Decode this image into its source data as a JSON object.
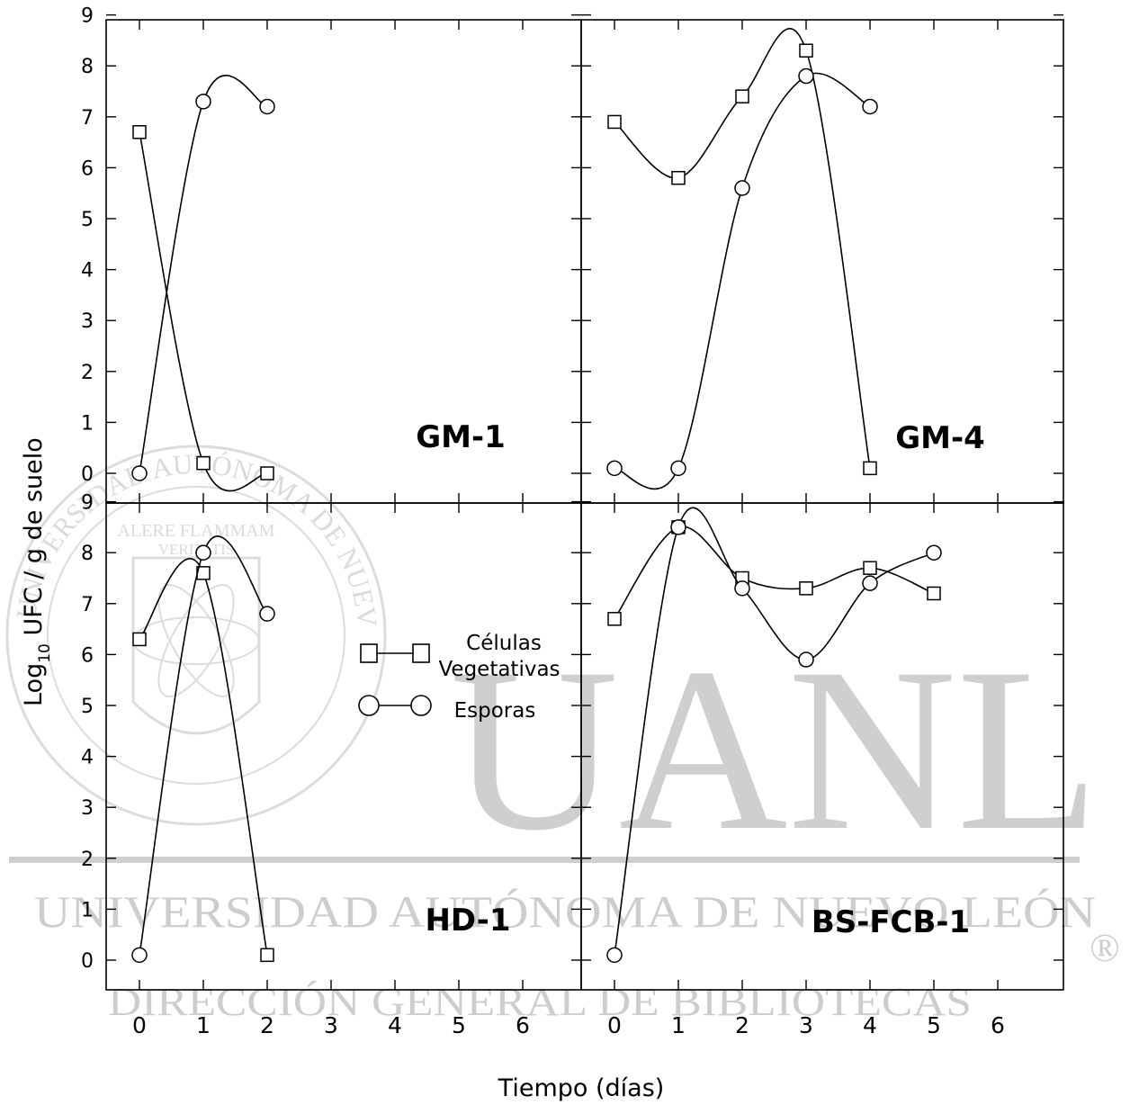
{
  "watermark": {
    "big": "UANL",
    "line1": "UNIVERSIDAD AUTÓNOMA DE NUEVO LEÓN",
    "line2": "DIRECCIÓN GENERAL DE BIBLIOTECAS",
    "registered": "®",
    "seal_ring": "UNIVERSIDAD AUTÓNOMA DE NUEVO LEÓN",
    "motto_1": "ALERE FLAMMAM",
    "motto_2": "VERITATIS"
  },
  "axes": {
    "ylabel_prefix": "Log",
    "ylabel_sub": "10",
    "ylabel_rest": " UFC / g de suelo",
    "xlabel": "Tiempo (días)"
  },
  "legend": {
    "vegetative_line1": "Células",
    "vegetative_line2": "Vegetativas",
    "spores": "Esporas"
  },
  "chart_data": [
    {
      "type": "line",
      "panel_label": "GM-1",
      "x_ticks": [
        0,
        1,
        2,
        3,
        4,
        5,
        6
      ],
      "y_ticks": [
        0,
        1,
        2,
        3,
        4,
        5,
        6,
        7,
        8,
        9
      ],
      "xlim": [
        -0.5,
        7
      ],
      "ylim": [
        -0.5,
        9
      ],
      "series": [
        {
          "name": "Células Vegetativas",
          "marker": "square",
          "x": [
            0,
            1,
            2
          ],
          "values": [
            6.7,
            0.2,
            0.0
          ]
        },
        {
          "name": "Esporas",
          "marker": "circle",
          "x": [
            0,
            1,
            2
          ],
          "values": [
            0.0,
            7.3,
            7.2
          ]
        }
      ]
    },
    {
      "type": "line",
      "panel_label": "GM-4",
      "x_ticks": [
        0,
        1,
        2,
        3,
        4,
        5,
        6
      ],
      "y_ticks": [
        0,
        1,
        2,
        3,
        4,
        5,
        6,
        7,
        8,
        9
      ],
      "xlim": [
        -0.5,
        7
      ],
      "ylim": [
        -0.5,
        9
      ],
      "series": [
        {
          "name": "Células Vegetativas",
          "marker": "square",
          "x": [
            0,
            1,
            2,
            3,
            4
          ],
          "values": [
            6.9,
            5.8,
            7.4,
            8.3,
            0.1
          ]
        },
        {
          "name": "Esporas",
          "marker": "circle",
          "x": [
            0,
            1,
            2,
            3,
            4
          ],
          "values": [
            0.1,
            0.1,
            5.6,
            7.8,
            7.2
          ]
        }
      ]
    },
    {
      "type": "line",
      "panel_label": "HD-1",
      "x_ticks": [
        0,
        1,
        2,
        3,
        4,
        5,
        6
      ],
      "y_ticks": [
        0,
        1,
        2,
        3,
        4,
        5,
        6,
        7,
        8,
        9
      ],
      "xlim": [
        -0.5,
        7
      ],
      "ylim": [
        -0.5,
        9
      ],
      "series": [
        {
          "name": "Células Vegetativas",
          "marker": "square",
          "x": [
            0,
            1,
            2
          ],
          "values": [
            6.3,
            7.6,
            0.1
          ]
        },
        {
          "name": "Esporas",
          "marker": "circle",
          "x": [
            0,
            1,
            2
          ],
          "values": [
            0.1,
            8.0,
            6.8
          ]
        }
      ]
    },
    {
      "type": "line",
      "panel_label": "BS-FCB-1",
      "x_ticks": [
        0,
        1,
        2,
        3,
        4,
        5,
        6
      ],
      "y_ticks": [
        0,
        1,
        2,
        3,
        4,
        5,
        6,
        7,
        8,
        9
      ],
      "xlim": [
        -0.5,
        7
      ],
      "ylim": [
        -0.5,
        9
      ],
      "series": [
        {
          "name": "Células Vegetativas",
          "marker": "square",
          "x": [
            0,
            1,
            2,
            3,
            4,
            5
          ],
          "values": [
            6.7,
            8.5,
            7.5,
            7.3,
            7.7,
            7.2
          ]
        },
        {
          "name": "Esporas",
          "marker": "circle",
          "x": [
            0,
            1,
            2,
            3,
            4,
            5
          ],
          "values": [
            0.1,
            8.5,
            7.3,
            5.9,
            7.4,
            8.0
          ]
        }
      ]
    }
  ]
}
